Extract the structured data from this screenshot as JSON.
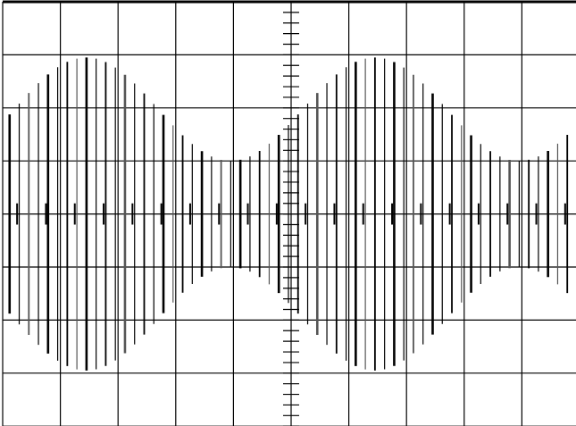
{
  "chart_data": {
    "type": "line",
    "title": "",
    "xlabel": "",
    "ylabel": "",
    "grid": true,
    "graticule": {
      "horizontal_divisions": 10,
      "vertical_divisions": 8
    },
    "xlim": [
      0,
      10
    ],
    "ylim": [
      -4,
      4
    ],
    "series": [
      {
        "kind": "amplitude-modulated carrier",
        "carrier_cycles_per_division": 6,
        "envelope_max": 2.95,
        "envelope_min": 1.0,
        "envelope_peaks_x": [
          1.45,
          6.45
        ],
        "envelope_period_divisions": 5.0,
        "baseline_spikes": 0.2
      }
    ]
  },
  "style": {
    "background": "#ffffff",
    "grid_color": "#000000",
    "trace_color": "#000000"
  }
}
